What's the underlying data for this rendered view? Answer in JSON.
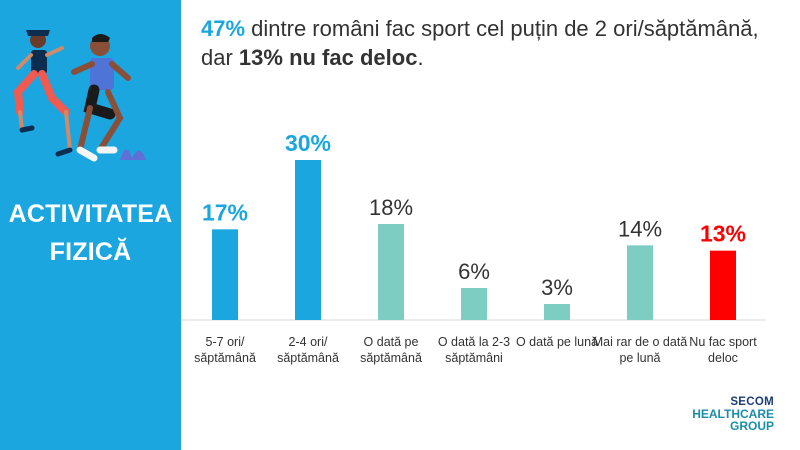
{
  "sidebar": {
    "title_line1": "ACTIVITATEA",
    "title_line2": "FIZICĂ",
    "bg_color": "#1ba6e0"
  },
  "headline": {
    "part1": "47%",
    "part2": " dintre români fac sport cel puțin de 2 ori/săptămână, dar ",
    "part3": "13% nu fac deloc",
    "part4": "."
  },
  "logo": {
    "line1": "SECOM",
    "line2": "HEALTHCARE",
    "line3": "GROUP"
  },
  "chart_data": {
    "type": "bar",
    "title": "47% dintre români fac sport cel puțin de 2 ori/săptămână, dar 13% nu fac deloc.",
    "xlabel": "",
    "ylabel": "",
    "ylim": [
      0,
      30
    ],
    "grid": false,
    "categories": [
      "5-7 ori/ săptămână",
      "2-4 ori/ săptămână",
      "O dată pe săptămână",
      "O dată la 2-3 săptămâni",
      "O dată pe lună",
      "Mai rar de o dată pe lună",
      "Nu fac sport deloc"
    ],
    "values": [
      17,
      30,
      18,
      6,
      3,
      14,
      13
    ],
    "value_labels": [
      "17%",
      "30%",
      "18%",
      "6%",
      "3%",
      "14%",
      "13%"
    ],
    "colors": [
      "#1ba6e0",
      "#1ba6e0",
      "#7ecdc2",
      "#7ecdc2",
      "#7ecdc2",
      "#7ecdc2",
      "#ff0000"
    ],
    "label_colors": [
      "#1ba6e0",
      "#1ba6e0",
      "#333333",
      "#333333",
      "#333333",
      "#333333",
      "#ff0000"
    ],
    "label_bold": [
      true,
      true,
      false,
      false,
      false,
      false,
      true
    ]
  }
}
